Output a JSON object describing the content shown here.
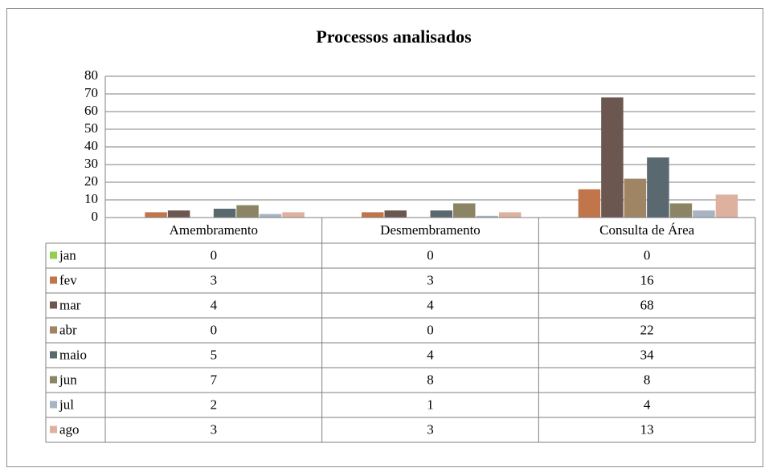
{
  "chart_data": {
    "type": "bar",
    "title": "Processos analisados",
    "categories": [
      "Amembramento",
      "Desmembramento",
      "Consulta de Área"
    ],
    "series": [
      {
        "name": "jan",
        "color": "#92d050",
        "values": [
          0,
          0,
          0
        ]
      },
      {
        "name": "fev",
        "color": "#c0764a",
        "values": [
          3,
          3,
          16
        ]
      },
      {
        "name": "mar",
        "color": "#6b5750",
        "values": [
          4,
          4,
          68
        ]
      },
      {
        "name": "abr",
        "color": "#a08564",
        "values": [
          0,
          0,
          22
        ]
      },
      {
        "name": "maio",
        "color": "#5a6870",
        "values": [
          5,
          4,
          34
        ]
      },
      {
        "name": "jun",
        "color": "#8c8565",
        "values": [
          7,
          8,
          8
        ]
      },
      {
        "name": "jul",
        "color": "#a8b4c4",
        "values": [
          2,
          1,
          4
        ]
      },
      {
        "name": "ago",
        "color": "#ddb19e",
        "values": [
          3,
          3,
          13
        ]
      }
    ],
    "ylim": [
      0,
      80
    ],
    "yticks": [
      0,
      10,
      20,
      30,
      40,
      50,
      60,
      70,
      80
    ],
    "grid": true
  }
}
